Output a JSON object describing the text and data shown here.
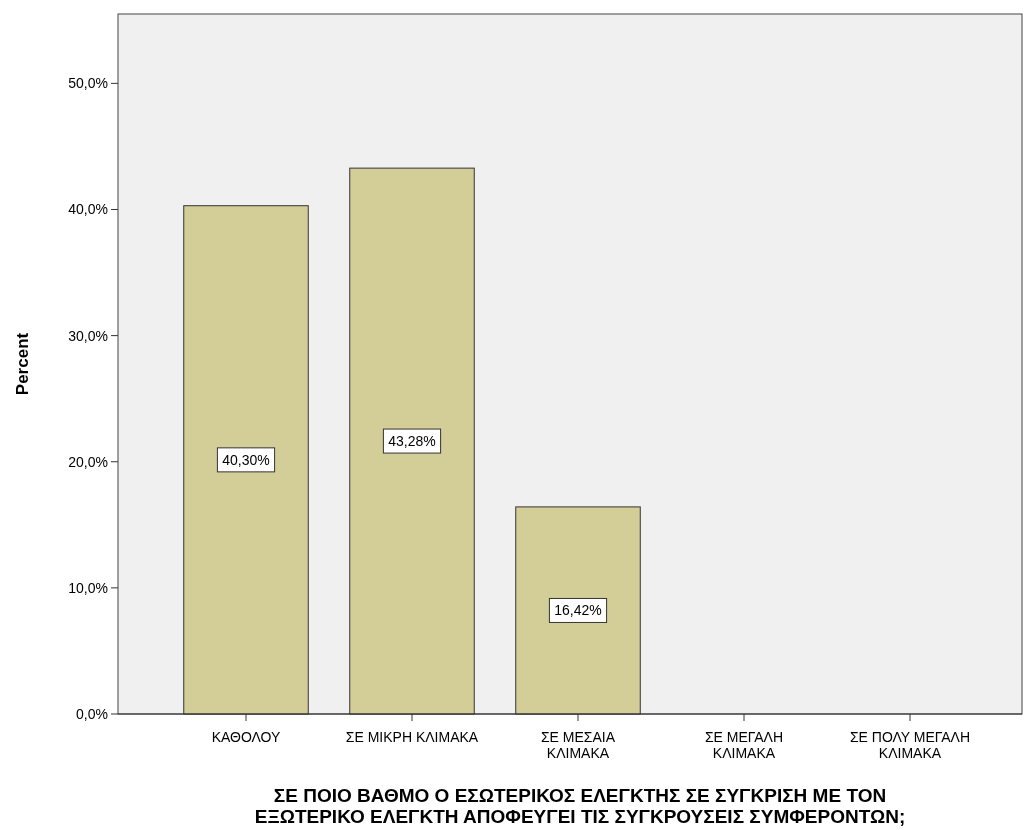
{
  "chart_data": {
    "type": "bar",
    "xlabel": "ΣΕ ΠΟΙΟ ΒΑΘΜΟ Ο ΕΣΩΤΕΡΙΚΟΣ ΕΛΕΓΚΤΗΣ ΣΕ ΣΥΓΚΡΙΣΗ ΜΕ ΤΟΝ\nΕΞΩΤΕΡΙΚΟ ΕΛΕΓΚΤΗ ΑΠΟΦΕΥΓΕΙ ΤΙΣ ΣΥΓΚΡΟΥΣΕΙΣ ΣΥΜΦΕΡΟΝΤΩΝ;",
    "ylabel": "Percent",
    "categories": [
      "ΚΑΘΟΛΟΥ",
      "ΣΕ ΜΙΚΡΗ ΚΛΙΜΑΚΑ",
      "ΣΕ ΜΕΣΑΙΑ\nΚΛΙΜΑΚΑ",
      "ΣΕ ΜΕΓΑΛΗ\nΚΛΙΜΑΚΑ",
      "ΣΕ ΠΟΛΥ ΜΕΓΑΛΗ\nΚΛΙΜΑΚΑ"
    ],
    "values": [
      40.3,
      43.28,
      16.42,
      0,
      0
    ],
    "value_labels": [
      "40,30%",
      "43,28%",
      "16,42%",
      null,
      null
    ],
    "color": "#d3ce98",
    "ylim": [
      0,
      55.5
    ],
    "yticks": [
      {
        "value": 0,
        "label": "0,0%"
      },
      {
        "value": 10,
        "label": "10,0%"
      },
      {
        "value": 20,
        "label": "20,0%"
      },
      {
        "value": 30,
        "label": "30,0%"
      },
      {
        "value": 40,
        "label": "40,0%"
      },
      {
        "value": 50,
        "label": "50,0%"
      }
    ],
    "grid": false
  }
}
